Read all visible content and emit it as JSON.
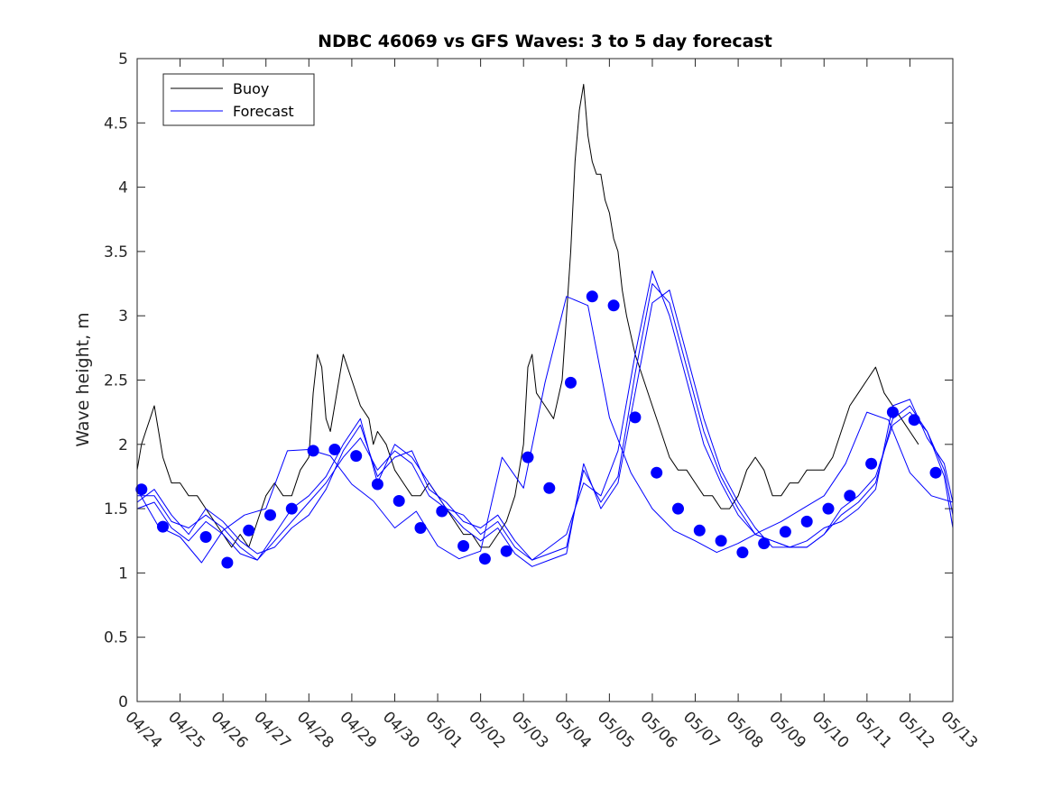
{
  "chart_data": {
    "type": "line",
    "title": "NDBC 46069 vs GFS Waves: 3 to 5 day forecast",
    "xlabel": "",
    "ylabel": "Wave height, m",
    "ylim": [
      0,
      5
    ],
    "y_ticks": [
      "0",
      "0.5",
      "1",
      "1.5",
      "2",
      "2.5",
      "3",
      "3.5",
      "4",
      "4.5",
      "5"
    ],
    "xlim_days": [
      0,
      19
    ],
    "x_ticks": [
      "04/24",
      "04/25",
      "04/26",
      "04/27",
      "04/28",
      "04/29",
      "04/30",
      "05/01",
      "05/02",
      "05/03",
      "05/04",
      "05/05",
      "05/06",
      "05/07",
      "05/08",
      "05/09",
      "05/10",
      "05/11",
      "05/12",
      "05/13"
    ],
    "grid": false,
    "legend": {
      "placement": "top-left",
      "entries": [
        "Buoy",
        "Forecast"
      ]
    },
    "colors": {
      "buoy": "#000000",
      "forecast": "#0000ff",
      "axis": "#262626"
    },
    "series": [
      {
        "name": "Buoy",
        "color": "#000000",
        "x": [
          0,
          0.1,
          0.2,
          0.3,
          0.4,
          0.5,
          0.6,
          0.7,
          0.8,
          1.0,
          1.2,
          1.4,
          1.6,
          1.8,
          2.0,
          2.2,
          2.4,
          2.6,
          2.8,
          3.0,
          3.2,
          3.4,
          3.6,
          3.8,
          4.0,
          4.1,
          4.2,
          4.3,
          4.4,
          4.5,
          4.6,
          4.8,
          5.0,
          5.2,
          5.4,
          5.5,
          5.6,
          5.8,
          6.0,
          6.2,
          6.4,
          6.6,
          6.8,
          7.0,
          7.2,
          7.4,
          7.6,
          7.8,
          8.0,
          8.2,
          8.4,
          8.6,
          8.8,
          9.0,
          9.1,
          9.2,
          9.3,
          9.5,
          9.7,
          9.9,
          10.0,
          10.1,
          10.2,
          10.3,
          10.4,
          10.5,
          10.6,
          10.7,
          10.8,
          10.9,
          11.0,
          11.1,
          11.2,
          11.3,
          11.4,
          11.6,
          11.8,
          12.0,
          12.2,
          12.4,
          12.6,
          12.8,
          13.0,
          13.2,
          13.4,
          13.6,
          13.8,
          14.0,
          14.2,
          14.4,
          14.6,
          14.8,
          15.0,
          15.2,
          15.4,
          15.6,
          15.8,
          16.0,
          16.2,
          16.4,
          16.6,
          16.8,
          17.0,
          17.2,
          17.4,
          17.6,
          17.8,
          18.0,
          18.2
        ],
        "y": [
          1.8,
          2.0,
          2.1,
          2.2,
          2.3,
          2.1,
          1.9,
          1.8,
          1.7,
          1.7,
          1.6,
          1.6,
          1.5,
          1.4,
          1.3,
          1.2,
          1.3,
          1.2,
          1.4,
          1.6,
          1.7,
          1.6,
          1.6,
          1.8,
          1.9,
          2.4,
          2.7,
          2.6,
          2.2,
          2.1,
          2.3,
          2.7,
          2.5,
          2.3,
          2.2,
          2.0,
          2.1,
          2.0,
          1.8,
          1.7,
          1.6,
          1.6,
          1.7,
          1.6,
          1.5,
          1.4,
          1.3,
          1.3,
          1.2,
          1.2,
          1.3,
          1.4,
          1.6,
          2.0,
          2.6,
          2.7,
          2.4,
          2.3,
          2.2,
          2.5,
          3.0,
          3.5,
          4.2,
          4.6,
          4.8,
          4.4,
          4.2,
          4.1,
          4.1,
          3.9,
          3.8,
          3.6,
          3.5,
          3.2,
          3.0,
          2.7,
          2.5,
          2.3,
          2.1,
          1.9,
          1.8,
          1.8,
          1.7,
          1.6,
          1.6,
          1.5,
          1.5,
          1.6,
          1.8,
          1.9,
          1.8,
          1.6,
          1.6,
          1.7,
          1.7,
          1.8,
          1.8,
          1.8,
          1.9,
          2.1,
          2.3,
          2.4,
          2.5,
          2.6,
          2.4,
          2.3,
          2.2,
          2.1,
          2.0
        ]
      },
      {
        "name": "Forecast",
        "color": "#0000ff",
        "x": [
          0.0,
          0.4,
          0.8,
          1.2,
          1.6,
          2.0,
          2.4,
          2.8,
          3.2,
          3.6,
          4.0,
          4.4,
          4.8,
          5.2,
          5.6,
          6.0,
          6.4,
          6.8,
          7.2,
          7.6,
          8.0,
          8.4,
          8.8,
          9.2,
          9.6,
          10.0,
          10.4,
          10.8,
          11.2,
          11.6,
          12.0,
          12.4,
          12.8,
          13.2,
          13.6,
          14.0,
          14.4,
          14.8,
          15.2,
          15.6,
          16.0,
          16.4,
          16.8,
          17.2,
          17.6,
          18.0,
          18.4,
          18.8,
          19.0
        ],
        "y": [
          1.55,
          1.65,
          1.45,
          1.3,
          1.5,
          1.4,
          1.25,
          1.15,
          1.2,
          1.35,
          1.45,
          1.65,
          1.95,
          2.15,
          1.75,
          1.9,
          1.95,
          1.65,
          1.55,
          1.4,
          1.35,
          1.45,
          1.25,
          1.1,
          1.15,
          1.2,
          1.8,
          1.55,
          1.75,
          2.55,
          3.25,
          3.1,
          2.6,
          2.1,
          1.75,
          1.5,
          1.3,
          1.25,
          1.2,
          1.2,
          1.3,
          1.45,
          1.55,
          1.7,
          2.2,
          2.3,
          2.1,
          1.75,
          1.35
        ]
      },
      {
        "name": "Forecast",
        "color": "#0000ff",
        "x": [
          0.0,
          0.4,
          0.8,
          1.2,
          1.6,
          2.0,
          2.4,
          2.8,
          3.2,
          3.6,
          4.0,
          4.4,
          4.8,
          5.2,
          5.6,
          6.0,
          6.4,
          6.8,
          7.2,
          7.6,
          8.0,
          8.4,
          8.8,
          9.2,
          9.6,
          10.0,
          10.4,
          10.8,
          11.2,
          11.6,
          12.0,
          12.4,
          12.8,
          13.2,
          13.6,
          14.0,
          14.4,
          14.8,
          15.2,
          15.6,
          16.0,
          16.4,
          16.8,
          17.2,
          17.6,
          18.0,
          18.4,
          18.8,
          19.0
        ],
        "y": [
          1.6,
          1.6,
          1.4,
          1.35,
          1.45,
          1.35,
          1.2,
          1.1,
          1.25,
          1.4,
          1.55,
          1.7,
          1.9,
          2.05,
          1.8,
          1.95,
          1.85,
          1.6,
          1.5,
          1.45,
          1.3,
          1.4,
          1.2,
          1.1,
          1.2,
          1.3,
          1.7,
          1.6,
          1.95,
          2.7,
          3.35,
          3.0,
          2.5,
          2.0,
          1.7,
          1.45,
          1.3,
          1.25,
          1.2,
          1.25,
          1.35,
          1.4,
          1.5,
          1.65,
          2.3,
          2.35,
          2.05,
          1.85,
          1.55
        ]
      },
      {
        "name": "Forecast",
        "color": "#0000ff",
        "x": [
          0.0,
          0.4,
          0.8,
          1.2,
          1.6,
          2.0,
          2.4,
          2.8,
          3.2,
          3.6,
          4.0,
          4.4,
          4.8,
          5.2,
          5.6,
          6.0,
          6.4,
          6.8,
          7.2,
          7.6,
          8.0,
          8.4,
          8.8,
          9.2,
          9.6,
          10.0,
          10.4,
          10.8,
          11.2,
          11.6,
          12.0,
          12.4,
          12.8,
          13.2,
          13.6,
          14.0,
          14.4,
          14.8,
          15.2,
          15.6,
          16.0,
          16.4,
          16.8,
          17.2,
          17.6,
          18.0,
          18.4,
          18.8,
          19.0
        ],
        "y": [
          1.5,
          1.55,
          1.35,
          1.25,
          1.4,
          1.3,
          1.15,
          1.1,
          1.3,
          1.5,
          1.6,
          1.75,
          2.0,
          2.2,
          1.7,
          2.0,
          1.9,
          1.7,
          1.5,
          1.35,
          1.25,
          1.35,
          1.15,
          1.05,
          1.1,
          1.15,
          1.85,
          1.5,
          1.7,
          2.4,
          3.1,
          3.2,
          2.7,
          2.2,
          1.8,
          1.55,
          1.35,
          1.2,
          1.2,
          1.2,
          1.3,
          1.5,
          1.6,
          1.75,
          2.15,
          2.25,
          2.1,
          1.8,
          1.45
        ]
      },
      {
        "name": "Forecast",
        "color": "#0000ff",
        "x": [
          0.0,
          0.5,
          1.0,
          1.5,
          2.0,
          2.5,
          3.0,
          3.5,
          4.0,
          4.5,
          5.0,
          5.5,
          6.0,
          6.5,
          7.0,
          7.5,
          8.0,
          8.5,
          9.0,
          9.5,
          10.0,
          10.5,
          11.0,
          11.5,
          12.0,
          12.5,
          13.0,
          13.5,
          14.0,
          14.5,
          15.0,
          15.5,
          16.0,
          16.5,
          17.0,
          17.5,
          18.0,
          18.5,
          19.0
        ],
        "y": [
          1.65,
          1.36,
          1.28,
          1.08,
          1.33,
          1.45,
          1.5,
          1.95,
          1.96,
          1.91,
          1.69,
          1.56,
          1.35,
          1.48,
          1.21,
          1.11,
          1.17,
          1.9,
          1.66,
          2.48,
          3.15,
          3.08,
          2.21,
          1.78,
          1.5,
          1.33,
          1.25,
          1.16,
          1.23,
          1.32,
          1.4,
          1.5,
          1.6,
          1.85,
          2.25,
          2.19,
          1.78,
          1.6,
          1.55
        ]
      }
    ],
    "forecast_markers": {
      "x": [
        0.1,
        0.6,
        1.6,
        2.1,
        2.6,
        3.1,
        3.6,
        4.1,
        4.6,
        5.1,
        5.6,
        6.1,
        6.6,
        7.1,
        7.6,
        8.1,
        8.6,
        9.1,
        9.6,
        10.1,
        10.6,
        11.1,
        11.6,
        12.1,
        12.6,
        13.1,
        13.6,
        14.1,
        14.6,
        15.1,
        15.6,
        16.1,
        16.6,
        17.1,
        17.6,
        18.1,
        18.6
      ],
      "y": [
        1.65,
        1.36,
        1.28,
        1.08,
        1.33,
        1.45,
        1.5,
        1.95,
        1.96,
        1.91,
        1.69,
        1.56,
        1.35,
        1.48,
        1.21,
        1.11,
        1.17,
        1.9,
        1.66,
        2.48,
        3.15,
        3.08,
        2.21,
        1.78,
        1.5,
        1.33,
        1.25,
        1.16,
        1.23,
        1.32,
        1.4,
        1.5,
        1.6,
        1.85,
        2.25,
        2.19,
        1.78
      ]
    }
  }
}
